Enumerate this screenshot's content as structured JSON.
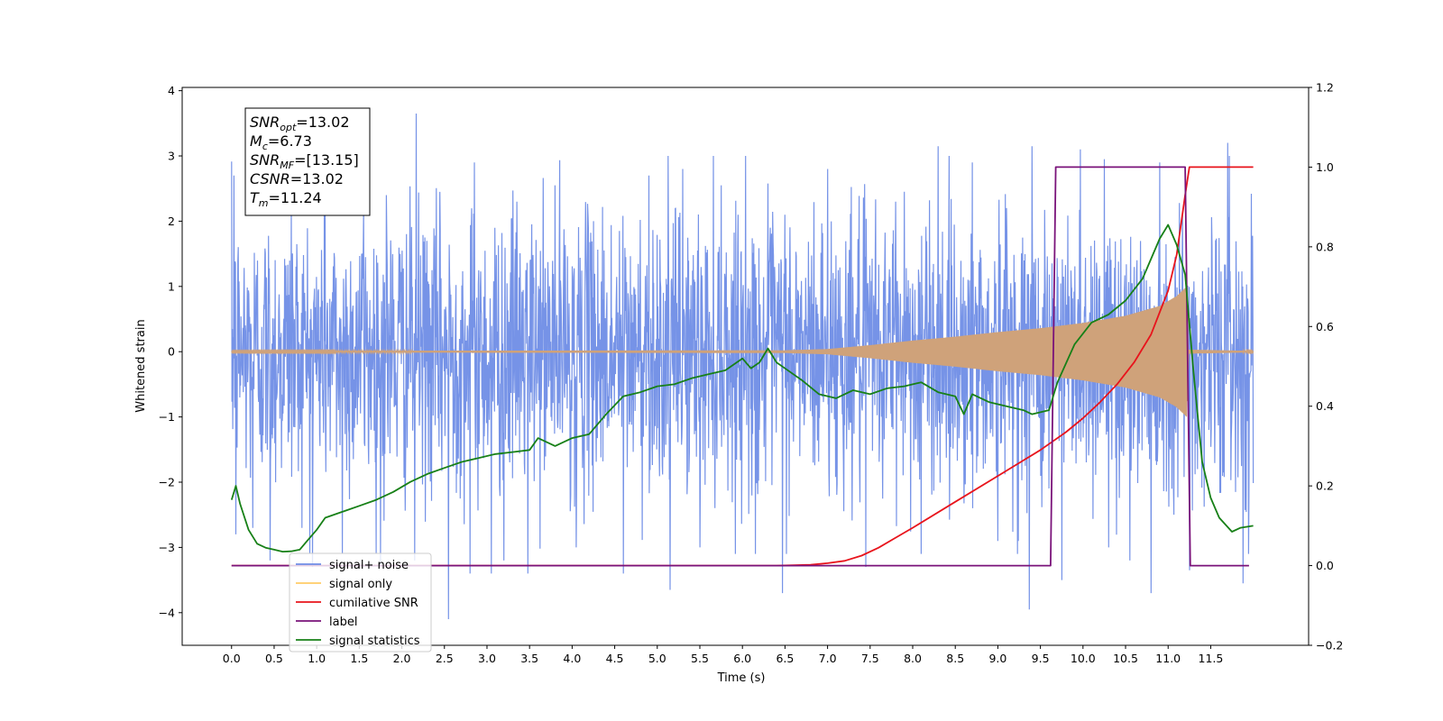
{
  "chart_data": {
    "type": "line",
    "xlabel": "Time (s)",
    "ylabel": "Whitened strain",
    "xlim": [
      -0.58,
      12.65
    ],
    "ylim": [
      -4.5,
      4.05
    ],
    "y2lim": [
      -0.2,
      1.2
    ],
    "xticks": [
      "0.0",
      "0.5",
      "1.0",
      "1.5",
      "2.0",
      "2.5",
      "3.0",
      "3.5",
      "4.0",
      "4.5",
      "5.0",
      "5.5",
      "6.0",
      "6.5",
      "7.0",
      "7.5",
      "8.0",
      "8.5",
      "9.0",
      "9.5",
      "10.0",
      "10.5",
      "11.0",
      "11.5"
    ],
    "yticks": [
      "4",
      "3",
      "2",
      "1",
      "0",
      "−1",
      "−2",
      "−3",
      "−4"
    ],
    "y2ticks": [
      "1.2",
      "1.0",
      "0.8",
      "0.6",
      "0.4",
      "0.2",
      "0.0",
      "−0.2"
    ],
    "stats_box": [
      {
        "name": "SNR",
        "sub": "opt",
        "value": "=13.02"
      },
      {
        "name": "M",
        "sub": "c",
        "value": "=6.73"
      },
      {
        "name": "SNR",
        "sub": "MF",
        "value": "=[13.15]"
      },
      {
        "name": "CSNR",
        "sub": "",
        "value": "=13.02"
      },
      {
        "name": "T",
        "sub": "m",
        "value": "=11.24"
      }
    ],
    "series": [
      {
        "name": "signal+ noise",
        "axis": "left",
        "color": "#6f8de6",
        "t_start": 0.0,
        "t_end": 12.0,
        "spread": 1.05,
        "spikes_high": [
          [
            0.03,
            2.7
          ],
          [
            0.45,
            2.4
          ],
          [
            0.7,
            2.3
          ],
          [
            1.1,
            2.3
          ],
          [
            1.55,
            2.2
          ],
          [
            1.82,
            2.4
          ],
          [
            2.17,
            3.65
          ],
          [
            2.85,
            2.9
          ],
          [
            3.35,
            2.3
          ],
          [
            3.8,
            2.55
          ],
          [
            4.25,
            2.0
          ],
          [
            4.9,
            2.7
          ],
          [
            5.3,
            2.8
          ],
          [
            5.75,
            2.55
          ],
          [
            5.95,
            2.1
          ],
          [
            6.5,
            2.1
          ],
          [
            7.0,
            2.8
          ],
          [
            7.8,
            2.3
          ],
          [
            7.9,
            2.45
          ],
          [
            8.3,
            3.15
          ],
          [
            8.7,
            2.9
          ],
          [
            9.1,
            2.2
          ],
          [
            9.4,
            3.15
          ],
          [
            9.75,
            2.85
          ],
          [
            9.97,
            3.1
          ],
          [
            10.25,
            2.95
          ],
          [
            10.55,
            2.7
          ],
          [
            10.9,
            2.9
          ],
          [
            11.25,
            2.3
          ],
          [
            11.7,
            3.2
          ]
        ],
        "spikes_low": [
          [
            0.05,
            -2.8
          ],
          [
            0.25,
            -2.7
          ],
          [
            0.45,
            -3.2
          ],
          [
            0.95,
            -3.3
          ],
          [
            1.3,
            -3.1
          ],
          [
            1.75,
            -3.3
          ],
          [
            2.15,
            -3.2
          ],
          [
            2.55,
            -4.1
          ],
          [
            2.8,
            -3.4
          ],
          [
            3.05,
            -3.4
          ],
          [
            3.2,
            -3.2
          ],
          [
            3.48,
            -3.4
          ],
          [
            4.05,
            -3.0
          ],
          [
            4.6,
            -3.4
          ],
          [
            5.15,
            -3.65
          ],
          [
            5.5,
            -3.0
          ],
          [
            6.15,
            -3.1
          ],
          [
            6.47,
            -3.7
          ],
          [
            7.45,
            -3.3
          ],
          [
            8.1,
            -3.1
          ],
          [
            9.0,
            -2.9
          ],
          [
            9.37,
            -3.95
          ],
          [
            9.75,
            -3.5
          ],
          [
            10.3,
            -3.0
          ],
          [
            10.55,
            -3.2
          ],
          [
            10.8,
            -3.7
          ],
          [
            11.25,
            -3.35
          ],
          [
            11.88,
            -3.55
          ]
        ]
      },
      {
        "name": "signal only",
        "axis": "left",
        "color": "#cfa27a",
        "t_start": 0.0,
        "t_end": 12.0,
        "merger_time": 11.24,
        "envelope": [
          [
            0.0,
            0.01
          ],
          [
            6.5,
            0.02
          ],
          [
            7.0,
            0.04
          ],
          [
            7.5,
            0.1
          ],
          [
            8.0,
            0.17
          ],
          [
            8.5,
            0.23
          ],
          [
            9.0,
            0.3
          ],
          [
            9.5,
            0.36
          ],
          [
            10.0,
            0.44
          ],
          [
            10.5,
            0.55
          ],
          [
            10.9,
            0.7
          ],
          [
            11.1,
            0.85
          ],
          [
            11.22,
            1.0
          ],
          [
            11.24,
            0.03
          ],
          [
            12.0,
            0.01
          ]
        ]
      },
      {
        "name": "cumilative SNR",
        "axis": "right",
        "color": "#e8141c",
        "points": [
          [
            0.0,
            0.0
          ],
          [
            6.4,
            0.0
          ],
          [
            6.8,
            0.002
          ],
          [
            7.0,
            0.006
          ],
          [
            7.2,
            0.012
          ],
          [
            7.4,
            0.025
          ],
          [
            7.6,
            0.045
          ],
          [
            7.8,
            0.07
          ],
          [
            8.0,
            0.095
          ],
          [
            8.5,
            0.16
          ],
          [
            9.0,
            0.225
          ],
          [
            9.5,
            0.29
          ],
          [
            9.8,
            0.335
          ],
          [
            10.0,
            0.37
          ],
          [
            10.2,
            0.41
          ],
          [
            10.4,
            0.455
          ],
          [
            10.6,
            0.51
          ],
          [
            10.8,
            0.58
          ],
          [
            11.0,
            0.69
          ],
          [
            11.1,
            0.78
          ],
          [
            11.2,
            0.93
          ],
          [
            11.25,
            1.0
          ],
          [
            12.0,
            1.0
          ]
        ]
      },
      {
        "name": "label",
        "axis": "right",
        "color": "#7a137a",
        "points": [
          [
            0.0,
            0.0
          ],
          [
            9.62,
            0.0
          ],
          [
            9.68,
            1.0
          ],
          [
            11.2,
            1.0
          ],
          [
            11.26,
            0.0
          ],
          [
            11.95,
            0.0
          ]
        ]
      },
      {
        "name": "signal statistics",
        "axis": "right",
        "color": "#178017",
        "points": [
          [
            0.0,
            0.165
          ],
          [
            0.05,
            0.2
          ],
          [
            0.1,
            0.155
          ],
          [
            0.2,
            0.09
          ],
          [
            0.3,
            0.055
          ],
          [
            0.4,
            0.045
          ],
          [
            0.5,
            0.04
          ],
          [
            0.6,
            0.035
          ],
          [
            0.7,
            0.036
          ],
          [
            0.8,
            0.04
          ],
          [
            0.9,
            0.065
          ],
          [
            1.0,
            0.09
          ],
          [
            1.1,
            0.12
          ],
          [
            1.3,
            0.135
          ],
          [
            1.5,
            0.15
          ],
          [
            1.7,
            0.165
          ],
          [
            1.9,
            0.185
          ],
          [
            2.1,
            0.21
          ],
          [
            2.3,
            0.23
          ],
          [
            2.5,
            0.245
          ],
          [
            2.7,
            0.26
          ],
          [
            2.9,
            0.27
          ],
          [
            3.1,
            0.28
          ],
          [
            3.3,
            0.285
          ],
          [
            3.5,
            0.29
          ],
          [
            3.6,
            0.32
          ],
          [
            3.8,
            0.3
          ],
          [
            4.0,
            0.32
          ],
          [
            4.2,
            0.33
          ],
          [
            4.4,
            0.38
          ],
          [
            4.6,
            0.425
          ],
          [
            4.8,
            0.435
          ],
          [
            5.0,
            0.45
          ],
          [
            5.2,
            0.455
          ],
          [
            5.4,
            0.47
          ],
          [
            5.6,
            0.48
          ],
          [
            5.8,
            0.49
          ],
          [
            6.0,
            0.52
          ],
          [
            6.1,
            0.495
          ],
          [
            6.2,
            0.51
          ],
          [
            6.3,
            0.545
          ],
          [
            6.4,
            0.51
          ],
          [
            6.5,
            0.495
          ],
          [
            6.7,
            0.465
          ],
          [
            6.9,
            0.43
          ],
          [
            7.1,
            0.42
          ],
          [
            7.3,
            0.44
          ],
          [
            7.5,
            0.43
          ],
          [
            7.7,
            0.445
          ],
          [
            7.9,
            0.45
          ],
          [
            8.1,
            0.46
          ],
          [
            8.3,
            0.435
          ],
          [
            8.5,
            0.425
          ],
          [
            8.6,
            0.38
          ],
          [
            8.7,
            0.43
          ],
          [
            8.9,
            0.41
          ],
          [
            9.1,
            0.4
          ],
          [
            9.3,
            0.39
          ],
          [
            9.4,
            0.38
          ],
          [
            9.6,
            0.39
          ],
          [
            9.7,
            0.46
          ],
          [
            9.9,
            0.555
          ],
          [
            10.1,
            0.61
          ],
          [
            10.3,
            0.63
          ],
          [
            10.5,
            0.665
          ],
          [
            10.7,
            0.72
          ],
          [
            10.9,
            0.82
          ],
          [
            11.0,
            0.855
          ],
          [
            11.1,
            0.805
          ],
          [
            11.2,
            0.73
          ],
          [
            11.3,
            0.48
          ],
          [
            11.4,
            0.26
          ],
          [
            11.5,
            0.17
          ],
          [
            11.6,
            0.12
          ],
          [
            11.75,
            0.085
          ],
          [
            11.85,
            0.095
          ],
          [
            12.0,
            0.1
          ]
        ]
      }
    ],
    "legend": {
      "position": "lower-left",
      "entries": [
        {
          "label": "signal+ noise",
          "color": "#6f8de6"
        },
        {
          "label": "signal only",
          "color": "#ffcc66"
        },
        {
          "label": "cumilative SNR",
          "color": "#e8141c"
        },
        {
          "label": "label",
          "color": "#7a137a"
        },
        {
          "label": "signal statistics",
          "color": "#178017"
        }
      ]
    }
  }
}
